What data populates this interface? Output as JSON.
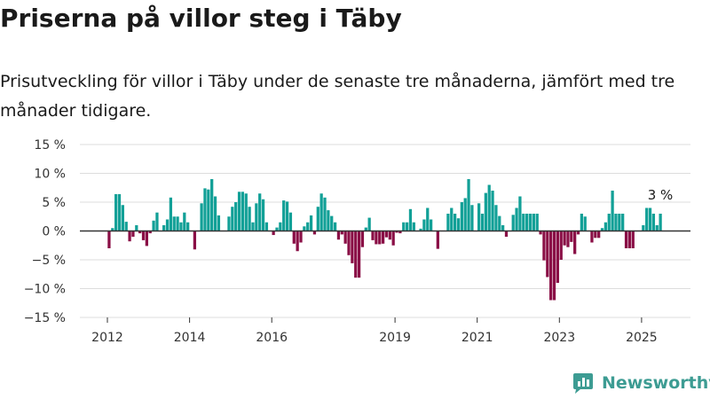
{
  "title": "Priserna på villor steg i Täby",
  "subtitle": "Prisutveckling för villor i Täby under de senaste tre månaderna, jämfört med tre månader tidigare.",
  "brand": "Newsworthy",
  "colors": {
    "positive": "#12a097",
    "negative": "#8a0f46",
    "brand": "#3d9c93",
    "grid": "#dddddd"
  },
  "chart_data": {
    "type": "bar",
    "ylabel": "",
    "ylim": [
      -15,
      15
    ],
    "yticks": [
      15,
      10,
      5,
      0,
      -5,
      -10,
      -15
    ],
    "ytick_labels": [
      "15 %",
      "10 %",
      "5 %",
      "0 %",
      "−5 %",
      "−10 %",
      "−15 %"
    ],
    "xticks": [
      {
        "label": "2012",
        "year": 2012
      },
      {
        "label": "2014",
        "year": 2014
      },
      {
        "label": "2016",
        "year": 2016
      },
      {
        "label": "2019",
        "year": 2019
      },
      {
        "label": "2021",
        "year": 2021
      },
      {
        "label": "2023",
        "year": 2023
      },
      {
        "label": "2025",
        "year": 2025
      }
    ],
    "start": "2012-01",
    "annotation": "3 %",
    "values": [
      -3,
      0.5,
      6.4,
      6.4,
      4.5,
      1.6,
      -1.8,
      -1,
      1,
      -0.4,
      -1.6,
      -2.6,
      -0.4,
      1.8,
      3.2,
      0,
      1,
      2,
      5.8,
      2.5,
      2.5,
      1.5,
      3.2,
      1.5,
      0,
      -3.2,
      0,
      4.8,
      7.4,
      7.2,
      9,
      6,
      2.7,
      0,
      0,
      2.5,
      4.2,
      5,
      6.8,
      6.8,
      6.5,
      4.2,
      1.5,
      4.8,
      6.5,
      5.5,
      1.5,
      0,
      -0.7,
      0.6,
      1.5,
      5.3,
      5.1,
      3.2,
      -2.2,
      -3.5,
      -2,
      0.8,
      1.5,
      2.7,
      -0.6,
      4.2,
      6.5,
      5.8,
      3.6,
      2.6,
      1.5,
      -1.5,
      -0.6,
      -2.2,
      -4.2,
      -5.6,
      -8.1,
      -8.1,
      -2.8,
      0.6,
      2.3,
      -1.6,
      -2.3,
      -2.3,
      -2.2,
      -1.1,
      -1.5,
      -2.5,
      -0.3,
      -0.4,
      1.5,
      1.5,
      3.8,
      1.5,
      0,
      0.4,
      2,
      4,
      2,
      0,
      -3.1,
      0,
      0,
      3,
      4,
      3,
      2.2,
      5,
      5.7,
      9,
      4.5,
      0,
      4.8,
      3,
      6.6,
      8,
      7,
      4.5,
      2.6,
      1,
      -1,
      0,
      2.8,
      4,
      6,
      3,
      3,
      3,
      3,
      3,
      -0.6,
      -5.1,
      -8,
      -12,
      -12,
      -9,
      -5,
      -2.5,
      -2.8,
      -1.9,
      -4,
      -0.6,
      3,
      2.5,
      0,
      -2,
      -1.2,
      -1.2,
      0.5,
      1.5,
      3,
      7,
      3,
      3,
      3,
      -3,
      -3,
      -3,
      0,
      0,
      1,
      4,
      4,
      3,
      1,
      3
    ]
  }
}
